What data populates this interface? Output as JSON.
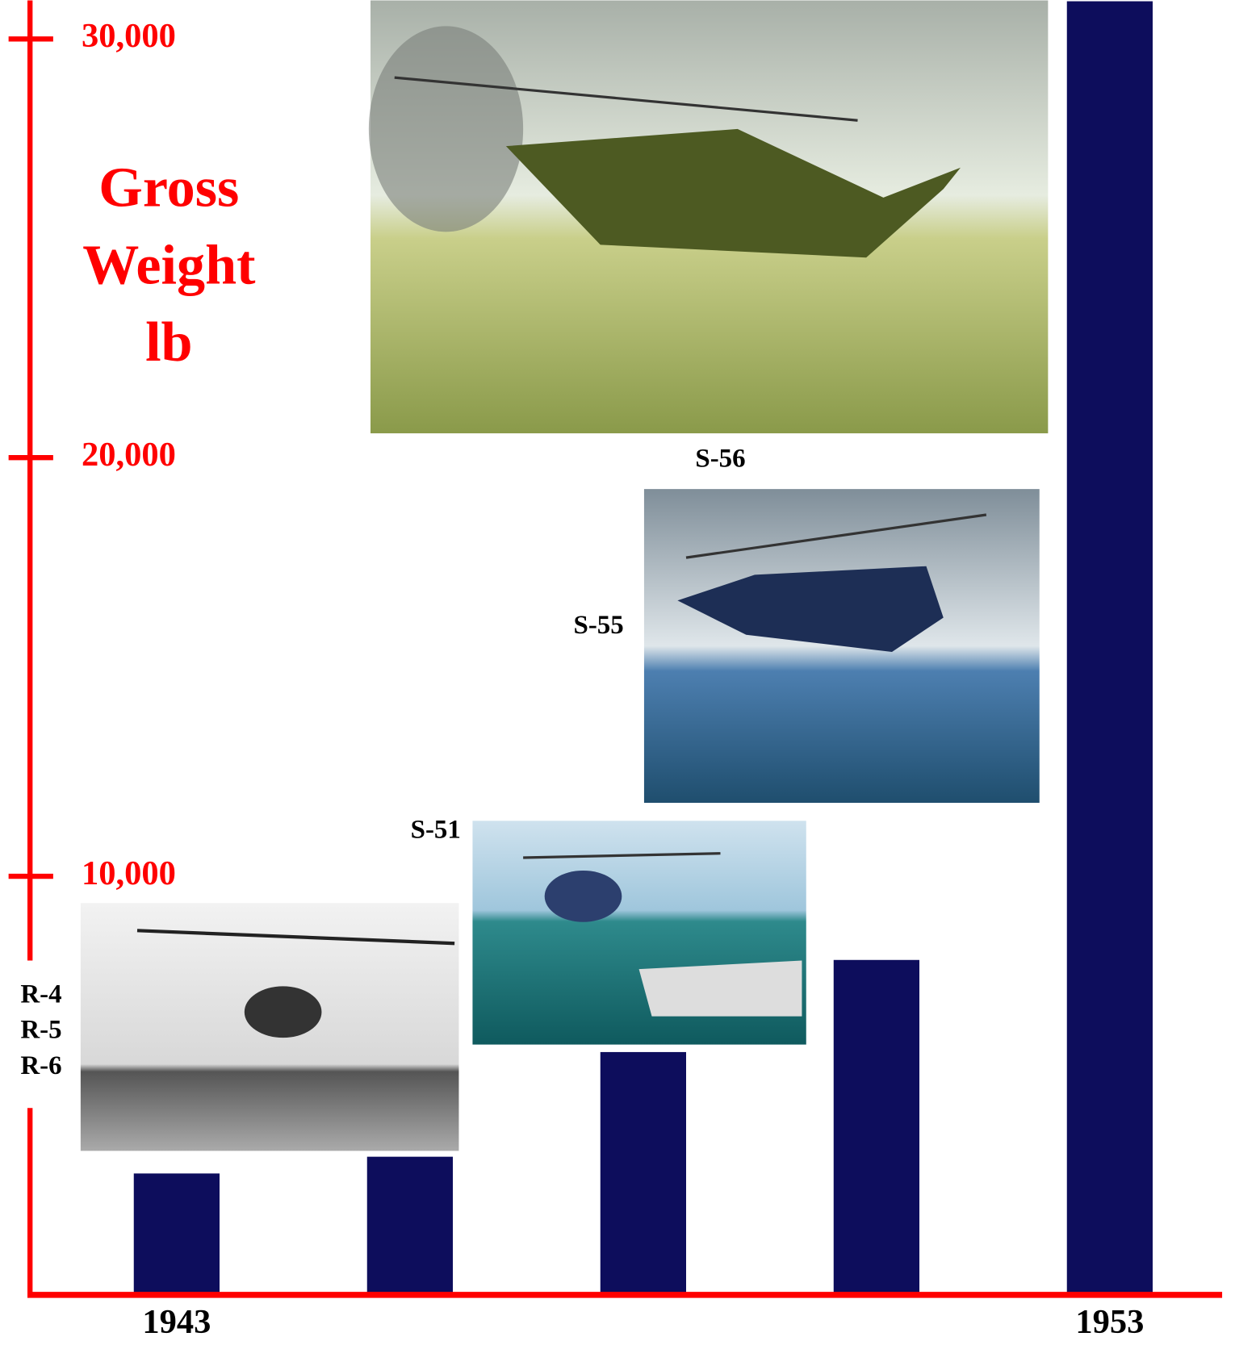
{
  "chart_data": {
    "type": "bar",
    "y_label_lines": [
      "Gross",
      "Weight",
      "lb"
    ],
    "categories": [
      "1943",
      null,
      null,
      null,
      "1953"
    ],
    "values": [
      2900,
      3300,
      5800,
      8000,
      30900
    ],
    "color": "#0d0d5c",
    "axis_color": "#ff0000",
    "ylim": [
      0,
      30900
    ],
    "yticks": [
      {
        "value": 10000,
        "label": "10,000"
      },
      {
        "value": 20000,
        "label": "20,000"
      },
      {
        "value": 30000,
        "label": "30,000"
      }
    ],
    "annotations": [
      "R-4",
      "R-5",
      "R-6",
      "S-51",
      "S-55",
      "S-56"
    ]
  }
}
